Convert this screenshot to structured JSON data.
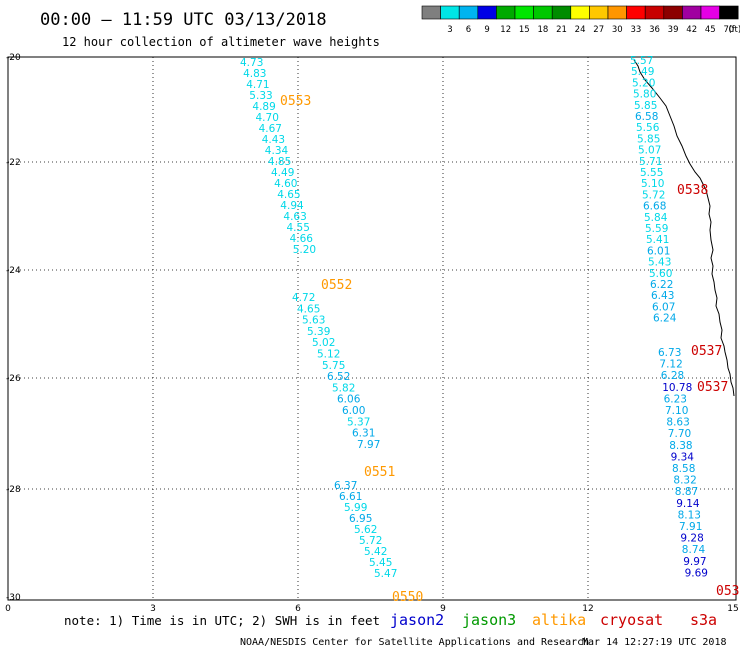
{
  "header": {
    "title": "00:00 – 11:59 UTC 03/13/2018",
    "subtitle": "12 hour collection of altimeter wave heights"
  },
  "legend": {
    "unit": "(ft)",
    "swatches": [
      {
        "label": "",
        "color": "#7f7f7f"
      },
      {
        "label": "3",
        "color": "#00e6e6"
      },
      {
        "label": "6",
        "color": "#00b4f0"
      },
      {
        "label": "9",
        "color": "#0000e6"
      },
      {
        "label": "12",
        "color": "#00aa00"
      },
      {
        "label": "15",
        "color": "#00e600"
      },
      {
        "label": "18",
        "color": "#00c800"
      },
      {
        "label": "21",
        "color": "#008c00"
      },
      {
        "label": "24",
        "color": "#ffff00"
      },
      {
        "label": "27",
        "color": "#ffc800"
      },
      {
        "label": "30",
        "color": "#ff9600"
      },
      {
        "label": "33",
        "color": "#ff0000"
      },
      {
        "label": "36",
        "color": "#c80000"
      },
      {
        "label": "39",
        "color": "#8c0000"
      },
      {
        "label": "42",
        "color": "#a000a0"
      },
      {
        "label": "45",
        "color": "#e600e6"
      },
      {
        "label": "70",
        "color": "#000000"
      }
    ]
  },
  "axes": {
    "x_ticks": [
      "0",
      "3",
      "6",
      "9",
      "12",
      "15"
    ],
    "y_ticks": [
      "-20",
      "-22",
      "-24",
      "-26",
      "-28",
      "-30"
    ]
  },
  "tracks": [
    {
      "label": "0553",
      "values": [
        "4.73",
        "4.83",
        "4.71",
        "5.33",
        "4.89",
        "4.70",
        "4.67",
        "4.43",
        "4.34",
        "4.85",
        "4.49",
        "4.60",
        "4.65",
        "4.94",
        "4.63",
        "4.55",
        "4.66",
        "5.20"
      ]
    },
    {
      "label": "0552",
      "values": [
        "4.72",
        "4.65",
        "5.63",
        "5.39",
        "5.02",
        "5.12",
        "5.75",
        "6.52",
        "5.82",
        "6.06",
        "6.00",
        "5.37",
        "6.31",
        "7.97"
      ]
    },
    {
      "label": "0551",
      "values": [
        "6.37",
        "6.61",
        "5.99",
        "6.95",
        "5.62",
        "5.72",
        "5.42",
        "5.45",
        "5.47"
      ]
    },
    {
      "label": "0550",
      "values": []
    },
    {
      "label": "0538",
      "values": [
        "5.57",
        "5.49",
        "5.20",
        "5.80",
        "5.85",
        "6.58",
        "5.56",
        "5.85",
        "5.07",
        "5.71",
        "5.55",
        "5.10",
        "5.72",
        "6.68",
        "5.84",
        "5.59",
        "5.41",
        "6.01",
        "5.43",
        "5.60",
        "6.22",
        "6.43",
        "6.07",
        "6.24"
      ]
    },
    {
      "label": "0537",
      "values": [
        "6.73",
        "7.12",
        "6.28",
        "10.78",
        "6.23",
        "7.10",
        "8.63",
        "7.70",
        "8.38",
        "9.34",
        "8.58",
        "8.32",
        "8.87",
        "9.14",
        "8.13",
        "7.91",
        "9.28",
        "8.74",
        "9.97",
        "9.69"
      ]
    },
    {
      "label": "0537",
      "values": []
    },
    {
      "label": "053",
      "values": []
    }
  ],
  "footer": {
    "note": "note: 1) Time is in UTC; 2) SWH is in feet",
    "satellites": [
      {
        "name": "jason2",
        "color": "#0000cc"
      },
      {
        "name": "jason3",
        "color": "#009900"
      },
      {
        "name": "altika",
        "color": "#ff9900"
      },
      {
        "name": "cryosat",
        "color": "#cc0000"
      },
      {
        "name": "s3a",
        "color": "#cc0000"
      }
    ],
    "credit": "NOAA/NESDIS Center for Satellite Applications and Research",
    "timestamp": "Mar 14 12:27:19 UTC 2018"
  }
}
